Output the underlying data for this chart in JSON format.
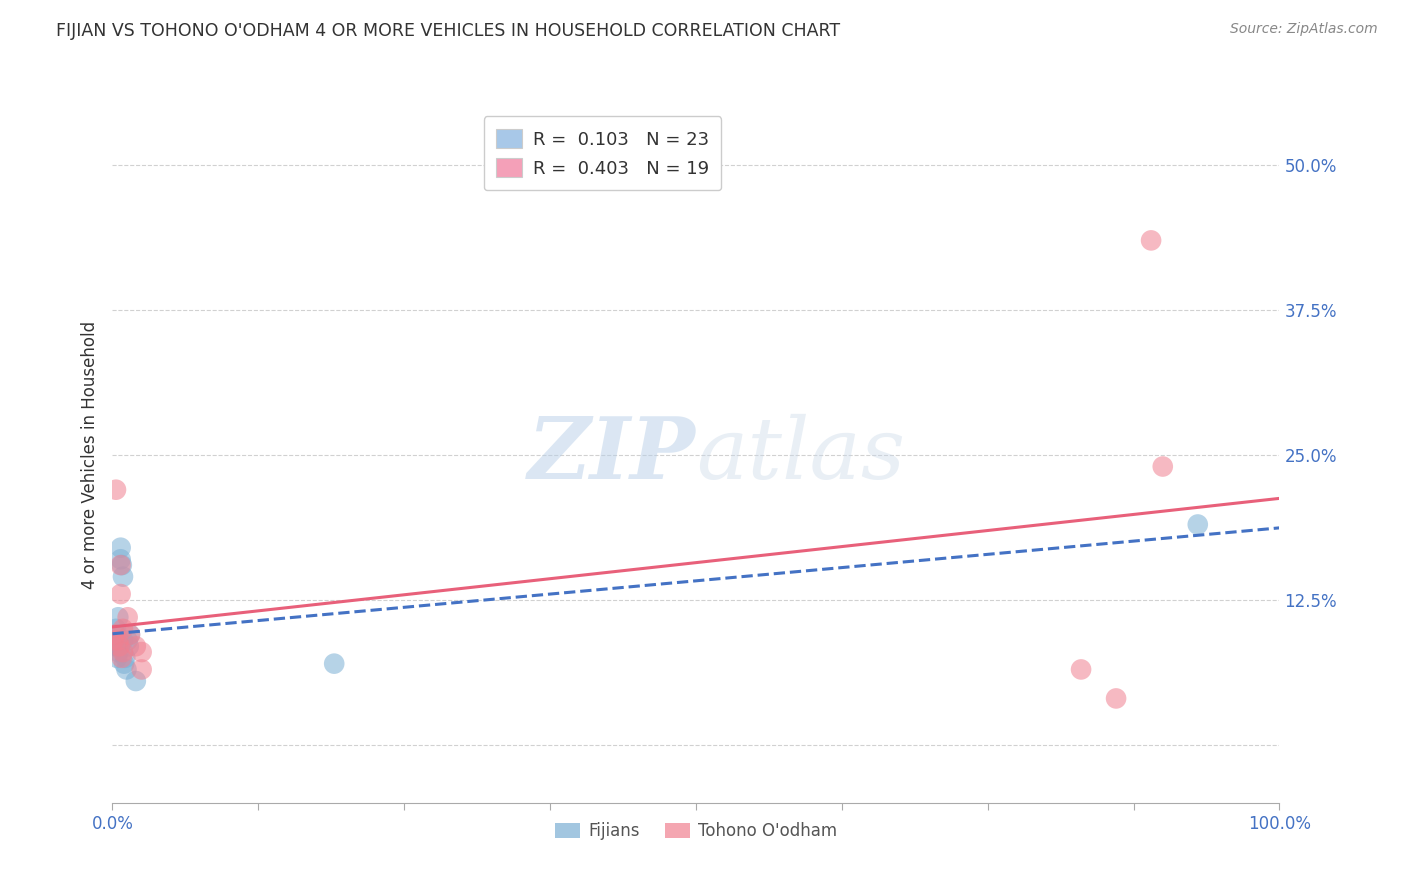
{
  "title": "FIJIAN VS TOHONO O'ODHAM 4 OR MORE VEHICLES IN HOUSEHOLD CORRELATION CHART",
  "source": "Source: ZipAtlas.com",
  "ylabel": "4 or more Vehicles in Household",
  "xlim": [
    0.0,
    1.0
  ],
  "ylim": [
    -0.05,
    0.55
  ],
  "xticks": [
    0.0,
    0.125,
    0.25,
    0.375,
    0.5,
    0.625,
    0.75,
    0.875,
    1.0
  ],
  "xticklabels": [
    "0.0%",
    "",
    "",
    "",
    "",
    "",
    "",
    "",
    "100.0%"
  ],
  "yticks": [
    0.0,
    0.125,
    0.25,
    0.375,
    0.5
  ],
  "yticklabels": [
    "",
    "12.5%",
    "25.0%",
    "37.5%",
    "50.0%"
  ],
  "legend_items": [
    {
      "label": "R =  0.103   N = 23",
      "color": "#a8c8e8"
    },
    {
      "label": "R =  0.403   N = 19",
      "color": "#f4a0b8"
    }
  ],
  "fijian_x": [
    0.001,
    0.002,
    0.003,
    0.003,
    0.004,
    0.004,
    0.005,
    0.005,
    0.006,
    0.007,
    0.007,
    0.008,
    0.009,
    0.009,
    0.01,
    0.011,
    0.012,
    0.013,
    0.014,
    0.015,
    0.02,
    0.19,
    0.93
  ],
  "fijian_y": [
    0.09,
    0.085,
    0.1,
    0.095,
    0.075,
    0.085,
    0.08,
    0.11,
    0.085,
    0.16,
    0.17,
    0.155,
    0.145,
    0.09,
    0.07,
    0.075,
    0.065,
    0.09,
    0.085,
    0.095,
    0.055,
    0.07,
    0.19
  ],
  "tohono_x": [
    0.001,
    0.002,
    0.003,
    0.005,
    0.006,
    0.007,
    0.007,
    0.008,
    0.009,
    0.009,
    0.013,
    0.015,
    0.02,
    0.025,
    0.025,
    0.83,
    0.86,
    0.89,
    0.9
  ],
  "tohono_y": [
    0.09,
    0.095,
    0.22,
    0.09,
    0.085,
    0.155,
    0.13,
    0.075,
    0.1,
    0.08,
    0.11,
    0.095,
    0.085,
    0.065,
    0.08,
    0.065,
    0.04,
    0.435,
    0.24
  ],
  "fijian_color": "#7bafd4",
  "tohono_color": "#f08090",
  "fijian_line_color": "#4472c4",
  "tohono_line_color": "#e8607a",
  "watermark_zip": "ZIP",
  "watermark_atlas": "atlas",
  "legend_fijian_label": "Fijians",
  "legend_tohono_label": "Tohono O'odham",
  "R_fijian": 0.103,
  "N_fijian": 23,
  "R_tohono": 0.403,
  "N_tohono": 19
}
